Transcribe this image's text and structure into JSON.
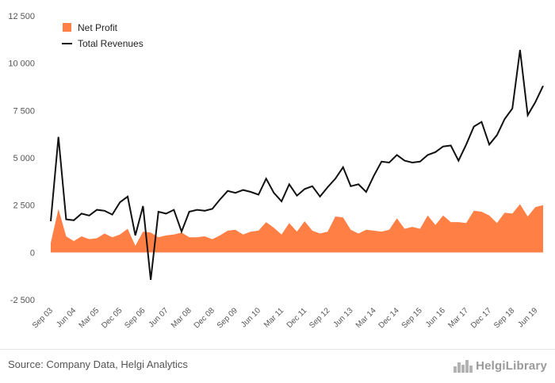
{
  "chart_data": {
    "type": "area",
    "x": [
      "Sep 03",
      "Dec 03",
      "Mar 04",
      "Jun 04",
      "Sep 04",
      "Dec 04",
      "Mar 05",
      "Jun 05",
      "Sep 05",
      "Dec 05",
      "Mar 06",
      "Jun 06",
      "Sep 06",
      "Dec 06",
      "Mar 07",
      "Jun 07",
      "Sep 07",
      "Dec 07",
      "Mar 08",
      "Jun 08",
      "Sep 08",
      "Dec 08",
      "Mar 09",
      "Jun 09",
      "Sep 09",
      "Dec 09",
      "Mar 10",
      "Jun 10",
      "Sep 10",
      "Dec 10",
      "Mar 11",
      "Jun 11",
      "Sep 11",
      "Dec 11",
      "Mar 12",
      "Jun 12",
      "Sep 12",
      "Dec 12",
      "Mar 13",
      "Jun 13",
      "Sep 13",
      "Dec 13",
      "Mar 14",
      "Jun 14",
      "Sep 14",
      "Dec 14",
      "Mar 15",
      "Jun 15",
      "Sep 15",
      "Dec 15",
      "Mar 16",
      "Jun 16",
      "Sep 16",
      "Dec 16",
      "Mar 17",
      "Jun 17",
      "Sep 17",
      "Dec 17",
      "Mar 18",
      "Jun 18",
      "Sep 18",
      "Dec 18",
      "Mar 19",
      "Jun 19",
      "Sep 19"
    ],
    "x_tick_labels": [
      "Sep 03",
      "Jun 04",
      "Mar 05",
      "Dec 05",
      "Sep 06",
      "Jun 07",
      "Mar 08",
      "Dec 08",
      "Sep 09",
      "Jun 10",
      "Mar 11",
      "Dec 11",
      "Sep 12",
      "Jun 13",
      "Mar 14",
      "Dec 14",
      "Sep 15",
      "Jun 16",
      "Mar 17",
      "Dec 17",
      "Sep 18",
      "Jun 19"
    ],
    "y_tick_labels": [
      "12 500",
      "10 000",
      "7 500",
      "5 000",
      "2 500",
      "0",
      "-2 500"
    ],
    "y_ticks": [
      12500,
      10000,
      7500,
      5000,
      2500,
      0,
      -2500
    ],
    "ylim": [
      -2500,
      12500
    ],
    "grid": false,
    "legend_position": "top-left",
    "series": [
      {
        "name": "Net Profit",
        "type": "area",
        "color": "#ff7f45",
        "values": [
          500,
          2300,
          850,
          600,
          850,
          700,
          750,
          1000,
          800,
          950,
          1250,
          350,
          1100,
          1050,
          800,
          900,
          950,
          1050,
          800,
          800,
          850,
          700,
          900,
          1150,
          1200,
          950,
          1100,
          1150,
          1600,
          1300,
          950,
          1550,
          1100,
          1650,
          1150,
          1000,
          1100,
          1900,
          1850,
          1200,
          1000,
          1200,
          1150,
          1100,
          1200,
          1800,
          1250,
          1350,
          1250,
          1950,
          1450,
          1950,
          1600,
          1600,
          1550,
          2200,
          2150,
          1950,
          1550,
          2100,
          2050,
          2550,
          1900,
          2400,
          2500
        ]
      },
      {
        "name": "Total Revenues",
        "type": "line",
        "color": "#111111",
        "values": [
          1650,
          6100,
          1750,
          1700,
          2050,
          1950,
          2250,
          2200,
          2000,
          2650,
          2950,
          900,
          2450,
          -1450,
          2150,
          2050,
          2250,
          1100,
          2150,
          2250,
          2200,
          2300,
          2800,
          3250,
          3150,
          3300,
          3200,
          3050,
          3900,
          3150,
          2700,
          3600,
          3000,
          3350,
          3500,
          2950,
          3450,
          3900,
          4500,
          3500,
          3600,
          3200,
          4050,
          4800,
          4750,
          5150,
          4850,
          4750,
          4800,
          5150,
          5300,
          5600,
          5650,
          4850,
          5700,
          6650,
          6900,
          5700,
          6200,
          7050,
          7600,
          10700,
          7250,
          7950,
          8800
        ]
      }
    ]
  },
  "footer": {
    "source": "Source: Company Data, Helgi Analytics",
    "logo_text": "HelgiLibrary",
    "logo_icon": "city-skyline-icon"
  }
}
